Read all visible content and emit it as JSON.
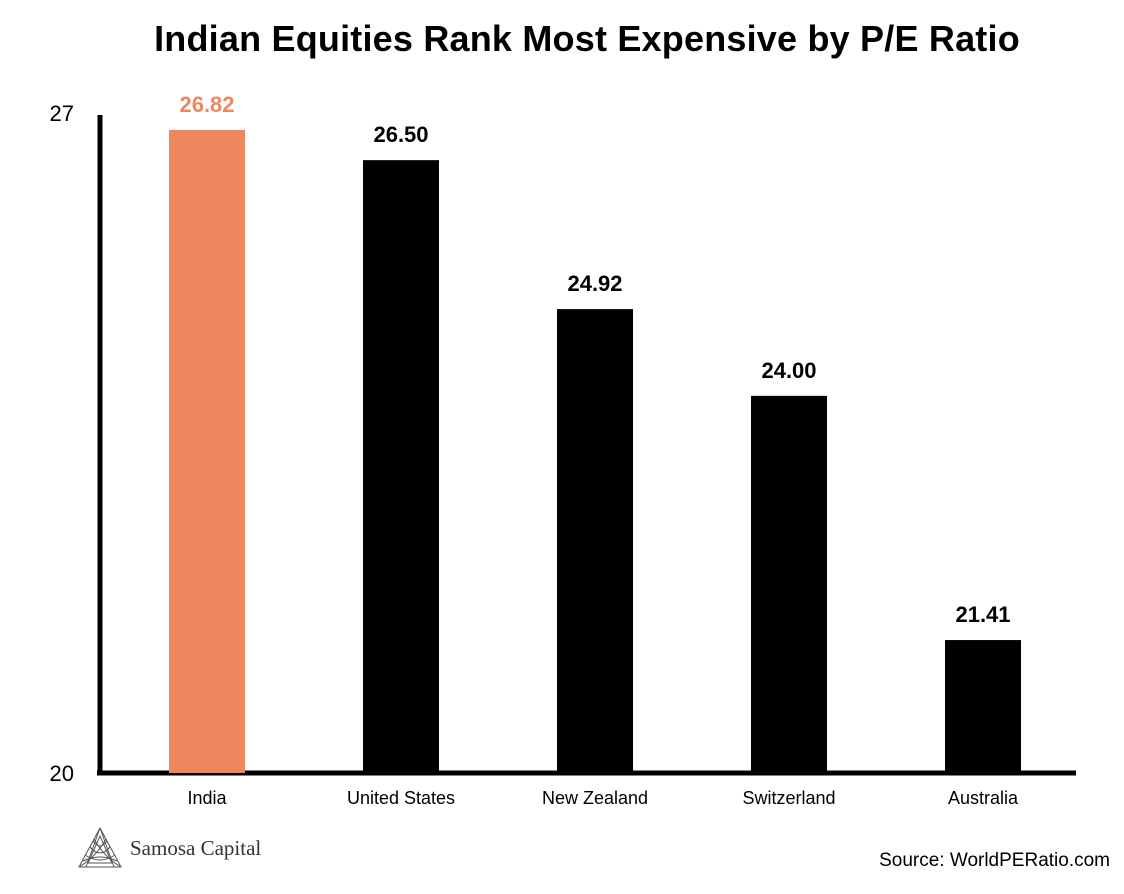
{
  "chart_data": {
    "type": "bar",
    "title": "Indian Equities Rank Most Expensive by P/E Ratio",
    "categories": [
      "India",
      "United States",
      "New Zealand",
      "Switzerland",
      "Australia"
    ],
    "values": [
      26.82,
      26.5,
      24.92,
      24.0,
      21.41
    ],
    "value_labels": [
      "26.82",
      "26.50",
      "24.92",
      "24.00",
      "21.41"
    ],
    "highlight_index": 0,
    "colors": {
      "highlight": "#EE875D",
      "default": "#000000"
    },
    "ylim": [
      20,
      27
    ],
    "yticks": [
      20,
      27
    ],
    "xlabel": "",
    "ylabel": "",
    "grid": false,
    "legend": "none"
  },
  "branding": {
    "logo_text": "Samosa Capital",
    "logo_icon": "samosa-triangle-logo-icon"
  },
  "source": "Source: WorldPERatio.com"
}
